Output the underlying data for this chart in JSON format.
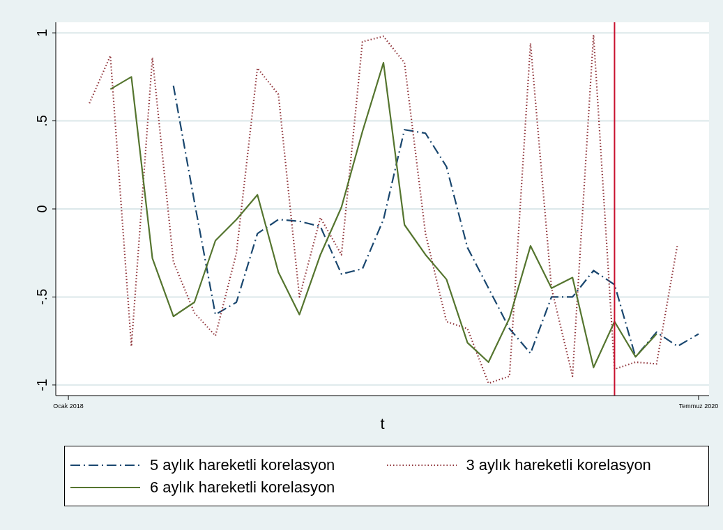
{
  "chart_data": {
    "type": "line",
    "xlabel": "t",
    "x": [
      "2018-02",
      "2018-03",
      "2018-04",
      "2018-05",
      "2018-06",
      "2018-07",
      "2018-08",
      "2018-09",
      "2018-10",
      "2018-11",
      "2018-12",
      "2019-01",
      "2019-02",
      "2019-03",
      "2019-04",
      "2019-05",
      "2019-06",
      "2019-07",
      "2019-08",
      "2019-09",
      "2019-10",
      "2019-11",
      "2019-12",
      "2020-01",
      "2020-02",
      "2020-03",
      "2020-04",
      "2020-05",
      "2020-06",
      "2020-07"
    ],
    "series": [
      {
        "name": "5 aylık hareketli korelasyon",
        "color": "#1a476f",
        "line_style": "dashed",
        "values": [
          null,
          null,
          null,
          null,
          0.7,
          0.04,
          -0.6,
          -0.53,
          -0.14,
          -0.06,
          -0.07,
          -0.1,
          -0.37,
          -0.34,
          -0.06,
          0.45,
          0.43,
          0.24,
          -0.22,
          -0.45,
          -0.68,
          -0.82,
          -0.5,
          -0.5,
          -0.35,
          -0.43,
          -0.84,
          -0.7,
          -0.78,
          -0.71
        ]
      },
      {
        "name": "3 aylık hareketli korelasyon",
        "color": "#90353b",
        "line_style": "dotted",
        "values": [
          0.6,
          0.87,
          -0.78,
          0.86,
          -0.3,
          -0.59,
          -0.72,
          -0.25,
          0.8,
          0.65,
          -0.5,
          -0.05,
          -0.26,
          0.95,
          0.98,
          0.83,
          -0.14,
          -0.64,
          -0.68,
          -0.99,
          -0.95,
          0.94,
          -0.45,
          -0.95,
          0.99,
          -0.91,
          -0.87,
          -0.88,
          -0.2,
          null
        ]
      },
      {
        "name": "6 aylık hareketli korelasyon",
        "color": "#55752f",
        "line_style": "solid",
        "values": [
          null,
          0.68,
          0.75,
          -0.28,
          -0.61,
          -0.53,
          -0.18,
          -0.06,
          0.08,
          -0.36,
          -0.6,
          -0.26,
          0.01,
          0.44,
          0.83,
          -0.09,
          -0.26,
          -0.4,
          -0.76,
          -0.87,
          -0.62,
          -0.21,
          -0.45,
          -0.39,
          -0.9,
          -0.64,
          -0.84,
          -0.71,
          null,
          null
        ]
      }
    ],
    "xlim": [
      "2017-12-13",
      "2020-07-16"
    ],
    "xticks": [
      {
        "value": "2018-01",
        "label": "Ocak 2018"
      },
      {
        "value": "2020-07",
        "label": "Temmuz 2020"
      }
    ],
    "ylim": [
      -1.06,
      1.06
    ],
    "yticks": [
      {
        "value": -1,
        "label": "-1"
      },
      {
        "value": -0.5,
        "label": "-.5"
      },
      {
        "value": 0,
        "label": "0"
      },
      {
        "value": 0.5,
        "label": ".5"
      },
      {
        "value": 1,
        "label": "1"
      }
    ],
    "ref_lines": [
      {
        "axis": "x",
        "value": "2020-03",
        "color": "#c8102e"
      }
    ],
    "grid": "y",
    "legend": "bottom",
    "marker": "none"
  }
}
